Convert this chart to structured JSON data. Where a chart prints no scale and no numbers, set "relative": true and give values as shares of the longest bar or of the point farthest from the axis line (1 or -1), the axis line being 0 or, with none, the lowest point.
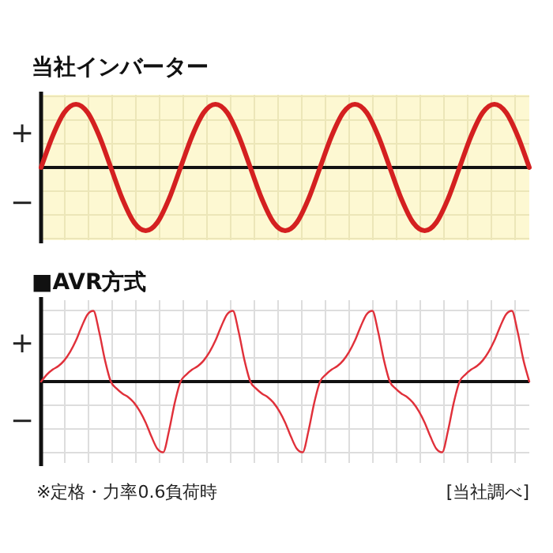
{
  "chart_data": [
    {
      "type": "line",
      "title": "当社インバーター",
      "relative": true,
      "grid": true,
      "annotations": [
        "+",
        "−"
      ],
      "categories": [
        null,
        null,
        null,
        null,
        null,
        null,
        null,
        null,
        null,
        null,
        null,
        null,
        null,
        null,
        null,
        null,
        null,
        null,
        null,
        null,
        null,
        null,
        null,
        null,
        null,
        null,
        null,
        null,
        null,
        null,
        null,
        null,
        null,
        null,
        null,
        null,
        null,
        null,
        null,
        null,
        null,
        null,
        null
      ],
      "series": [
        {
          "color": "#d42020",
          "values": [
            0,
            0.5,
            0.87,
            1,
            0.87,
            0.5,
            0,
            -0.5,
            -0.87,
            -1,
            -0.87,
            -0.5,
            0,
            0.5,
            0.87,
            1,
            0.87,
            0.5,
            0,
            -0.5,
            -0.87,
            -1,
            -0.87,
            -0.5,
            0,
            0.5,
            0.87,
            1,
            0.87,
            0.5,
            0,
            -0.5,
            -0.87,
            -1,
            -0.87,
            -0.5,
            0,
            0.5,
            0.87,
            1,
            0.87,
            0.5,
            0
          ]
        }
      ]
    },
    {
      "type": "line",
      "title": "■AVR方式",
      "relative": true,
      "grid": true,
      "annotations": [
        "+",
        "−",
        "※定格・力率0.6負荷時",
        "[当社調べ]"
      ],
      "categories": [
        null,
        null,
        null,
        null,
        null,
        null,
        null,
        null,
        null,
        null,
        null,
        null,
        null,
        null,
        null,
        null,
        null,
        null,
        null,
        null,
        null,
        null,
        null,
        null,
        null,
        null,
        null,
        null,
        null,
        null,
        null,
        null,
        null,
        null,
        null,
        null,
        null,
        null,
        null,
        null,
        null,
        null,
        null,
        null,
        null,
        null,
        null,
        null,
        null,
        null,
        null,
        null,
        null,
        null,
        null,
        null,
        null,
        null,
        null,
        null,
        null,
        null,
        null,
        null,
        null,
        null,
        null,
        null,
        null,
        null,
        null,
        null,
        null,
        null,
        null,
        null,
        null,
        null,
        null,
        null,
        null,
        null,
        null,
        null,
        null
      ],
      "series": [
        {
          "color": "#e0303a",
          "values": [
            0,
            0.1,
            0.17,
            0.22,
            0.3,
            0.42,
            0.58,
            0.78,
            0.95,
            1,
            0.7,
            0.3,
            0,
            -0.1,
            -0.17,
            -0.22,
            -0.3,
            -0.42,
            -0.58,
            -0.78,
            -0.95,
            -1,
            -0.7,
            -0.3,
            0,
            0.1,
            0.17,
            0.22,
            0.3,
            0.42,
            0.58,
            0.78,
            0.95,
            1,
            0.7,
            0.3,
            0,
            -0.1,
            -0.17,
            -0.22,
            -0.3,
            -0.42,
            -0.58,
            -0.78,
            -0.95,
            -1,
            -0.7,
            -0.3,
            0,
            0.1,
            0.17,
            0.22,
            0.3,
            0.42,
            0.58,
            0.78,
            0.95,
            1,
            0.7,
            0.3,
            0,
            -0.1,
            -0.17,
            -0.22,
            -0.3,
            -0.42,
            -0.58,
            -0.78,
            -0.95,
            -1,
            -0.7,
            -0.3,
            0,
            0.1,
            0.17,
            0.22,
            0.3,
            0.42,
            0.58,
            0.78,
            0.95,
            1,
            0.7,
            0.3,
            0
          ]
        }
      ]
    }
  ]
}
